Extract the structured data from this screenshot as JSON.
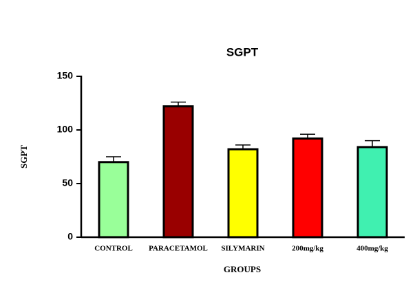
{
  "chart_data": {
    "type": "bar",
    "title": "SGPT",
    "x_label": "GROUPS",
    "y_label": "SGPT",
    "categories": [
      "CONTROL",
      "PARACETAMOL",
      "SILYMARIN",
      "200mg/kg",
      "400mg/kg"
    ],
    "values": [
      70,
      122,
      82,
      92,
      84
    ],
    "errors": [
      5,
      4,
      4,
      4,
      6
    ],
    "colors": [
      "#99ff99",
      "#990000",
      "#ffff00",
      "#ff0000",
      "#40f0b0"
    ],
    "ylim": [
      0,
      150
    ],
    "yticks": [
      0,
      50,
      100,
      150
    ]
  }
}
